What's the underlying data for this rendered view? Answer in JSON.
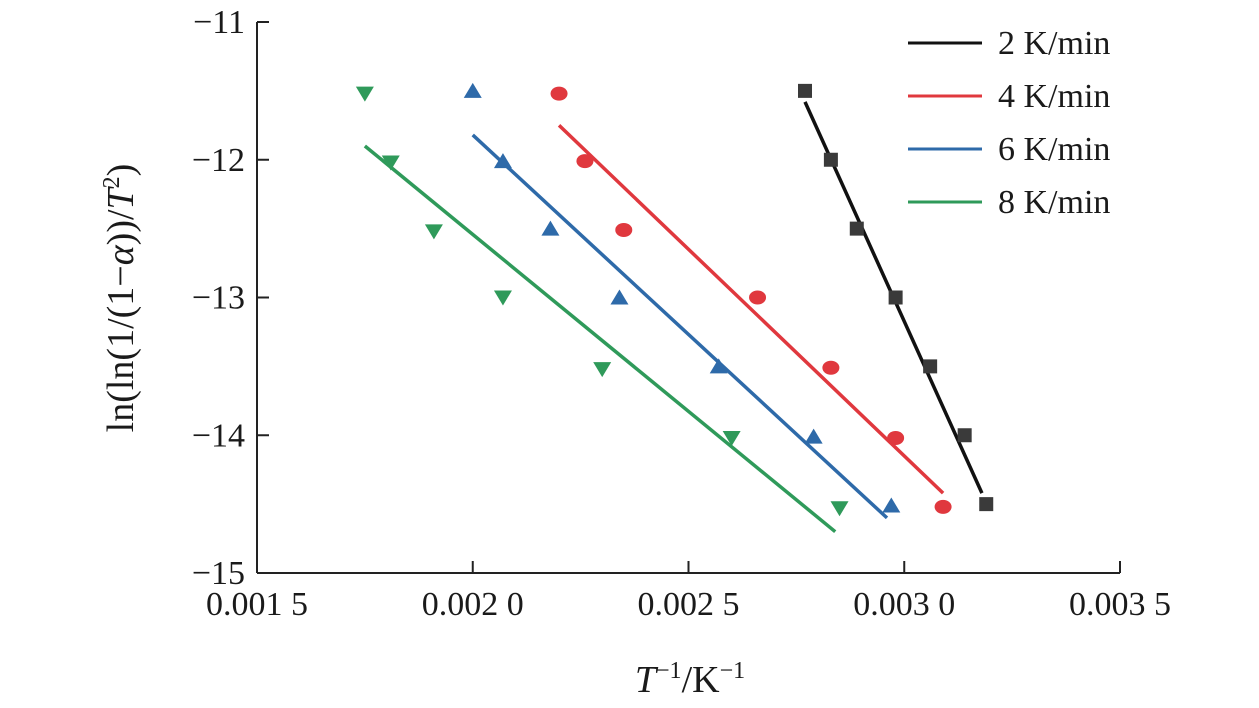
{
  "chart_data": {
    "type": "scatter",
    "title": "",
    "xlabel": {
      "var": "T",
      "sup": "−1",
      "unit": "/K",
      "unit_sup": "−1"
    },
    "ylabel": {
      "pre": "ln(ln(1/(1−",
      "alpha": "α",
      "mid": "))/",
      "var": "T",
      "sup": "2",
      "post": ")"
    },
    "x_ticks": [
      {
        "value": 0.0015,
        "label": "0.001 5"
      },
      {
        "value": 0.002,
        "label": "0.002 0"
      },
      {
        "value": 0.0025,
        "label": "0.002 5"
      },
      {
        "value": 0.003,
        "label": "0.003 0"
      },
      {
        "value": 0.0035,
        "label": "0.003 5"
      }
    ],
    "y_ticks": [
      {
        "value": -11,
        "label": "−11"
      },
      {
        "value": -12,
        "label": "−12"
      },
      {
        "value": -13,
        "label": "−13"
      },
      {
        "value": -14,
        "label": "−14"
      },
      {
        "value": -15,
        "label": "−15"
      }
    ],
    "xlim": [
      0.0015,
      0.0035
    ],
    "ylim": [
      -15,
      -11
    ],
    "grid": false,
    "legend_position": "top-right",
    "series": [
      {
        "name": "2 K/min",
        "color": "#111111",
        "marker_color": "#3a3a3a",
        "marker": "square",
        "points": [
          [
            0.00277,
            -11.5
          ],
          [
            0.00283,
            -12.0
          ],
          [
            0.00289,
            -12.5
          ],
          [
            0.00298,
            -13.0
          ],
          [
            0.00306,
            -13.5
          ],
          [
            0.00314,
            -14.0
          ],
          [
            0.00319,
            -14.5
          ]
        ],
        "fit": [
          [
            0.00277,
            -11.58
          ],
          [
            0.00318,
            -14.42
          ]
        ]
      },
      {
        "name": "4 K/min",
        "color": "#e0383e",
        "marker_color": "#e0383e",
        "marker": "circle",
        "points": [
          [
            0.0022,
            -11.52
          ],
          [
            0.00226,
            -12.01
          ],
          [
            0.00235,
            -12.51
          ],
          [
            0.00266,
            -13.0
          ],
          [
            0.00283,
            -13.51
          ],
          [
            0.00298,
            -14.02
          ],
          [
            0.00309,
            -14.52
          ]
        ],
        "fit": [
          [
            0.0022,
            -11.75
          ],
          [
            0.00309,
            -14.42
          ]
        ]
      },
      {
        "name": "6 K/min",
        "color": "#2e6aa9",
        "marker_color": "#2e6aa9",
        "marker": "triangle-up",
        "points": [
          [
            0.002,
            -11.5
          ],
          [
            0.00207,
            -12.01
          ],
          [
            0.00218,
            -12.5
          ],
          [
            0.00234,
            -13.0
          ],
          [
            0.00257,
            -13.5
          ],
          [
            0.00279,
            -14.01
          ],
          [
            0.00297,
            -14.51
          ]
        ],
        "fit": [
          [
            0.002,
            -11.82
          ],
          [
            0.00296,
            -14.6
          ]
        ]
      },
      {
        "name": "8 K/min",
        "color": "#2f9a5a",
        "marker_color": "#2f9a5a",
        "marker": "triangle-down",
        "points": [
          [
            0.00175,
            -11.52
          ],
          [
            0.00181,
            -12.02
          ],
          [
            0.00191,
            -12.52
          ],
          [
            0.00207,
            -13.0
          ],
          [
            0.0023,
            -13.52
          ],
          [
            0.0026,
            -14.02
          ],
          [
            0.00285,
            -14.53
          ]
        ],
        "fit": [
          [
            0.00175,
            -11.9
          ],
          [
            0.00284,
            -14.7
          ]
        ]
      }
    ]
  }
}
